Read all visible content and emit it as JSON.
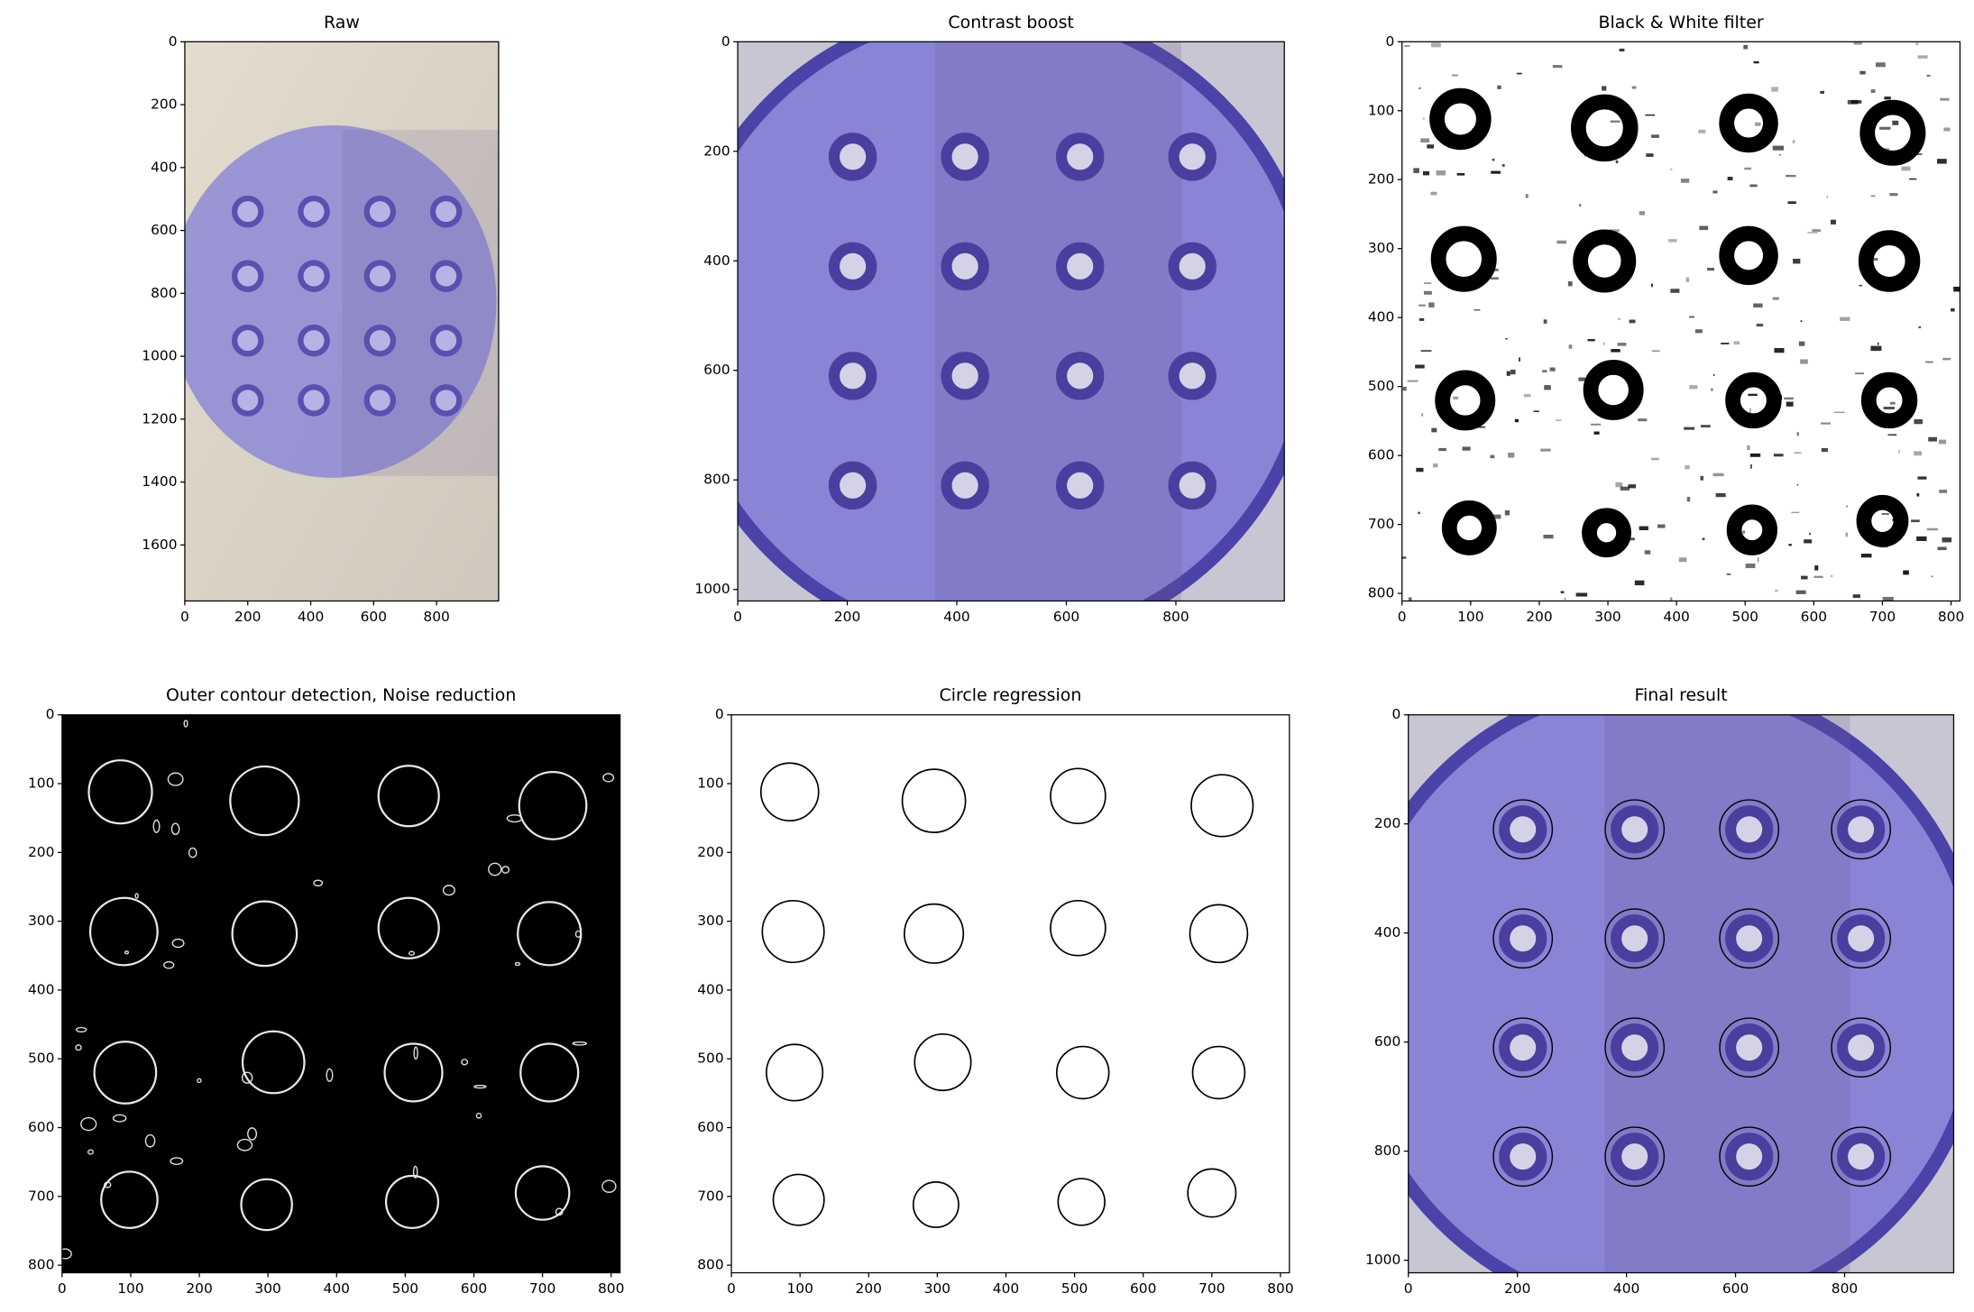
{
  "chart_data": [
    {
      "type": "image",
      "title": "Raw",
      "xlim": [
        0,
        997
      ],
      "ylim": [
        1778,
        0
      ],
      "xticks": [
        0,
        200,
        400,
        600,
        800
      ],
      "yticks": [
        0,
        200,
        400,
        600,
        800,
        1000,
        1200,
        1400,
        1600
      ]
    },
    {
      "type": "image",
      "title": "Contrast boost",
      "xlim": [
        0,
        998
      ],
      "ylim": [
        1021,
        0
      ],
      "xticks": [
        0,
        200,
        400,
        600,
        800
      ],
      "yticks": [
        0,
        200,
        400,
        600,
        800,
        1000
      ]
    },
    {
      "type": "image",
      "title": "Black & White filter",
      "xlim": [
        0,
        813
      ],
      "ylim": [
        811,
        0
      ],
      "xticks": [
        0,
        100,
        200,
        300,
        400,
        500,
        600,
        700,
        800
      ],
      "yticks": [
        0,
        100,
        200,
        300,
        400,
        500,
        600,
        700,
        800
      ]
    },
    {
      "type": "image",
      "title": "Outer contour detection, Noise reduction",
      "xlim": [
        0,
        813
      ],
      "ylim": [
        811,
        0
      ],
      "xticks": [
        0,
        100,
        200,
        300,
        400,
        500,
        600,
        700,
        800
      ],
      "yticks": [
        0,
        100,
        200,
        300,
        400,
        500,
        600,
        700,
        800
      ]
    },
    {
      "type": "image",
      "title": "Circle regression",
      "xlim": [
        0,
        813
      ],
      "ylim": [
        811,
        0
      ],
      "xticks": [
        0,
        100,
        200,
        300,
        400,
        500,
        600,
        700,
        800
      ],
      "yticks": [
        0,
        100,
        200,
        300,
        400,
        500,
        600,
        700,
        800
      ],
      "circles": [
        [
          85,
          112,
          42
        ],
        [
          295,
          125,
          46
        ],
        [
          505,
          118,
          40
        ],
        [
          715,
          132,
          45
        ],
        [
          90,
          315,
          45
        ],
        [
          295,
          318,
          43
        ],
        [
          505,
          310,
          40
        ],
        [
          710,
          318,
          42
        ],
        [
          92,
          520,
          41
        ],
        [
          308,
          505,
          41
        ],
        [
          512,
          520,
          38
        ],
        [
          710,
          520,
          38
        ],
        [
          98,
          705,
          37
        ],
        [
          298,
          712,
          33
        ],
        [
          510,
          708,
          34
        ],
        [
          700,
          695,
          35
        ]
      ]
    },
    {
      "type": "image",
      "title": "Final result",
      "xlim": [
        0,
        1000
      ],
      "ylim": [
        1023,
        0
      ],
      "xticks": [
        0,
        200,
        400,
        600,
        800
      ],
      "yticks": [
        0,
        200,
        400,
        600,
        800,
        1000
      ]
    }
  ]
}
